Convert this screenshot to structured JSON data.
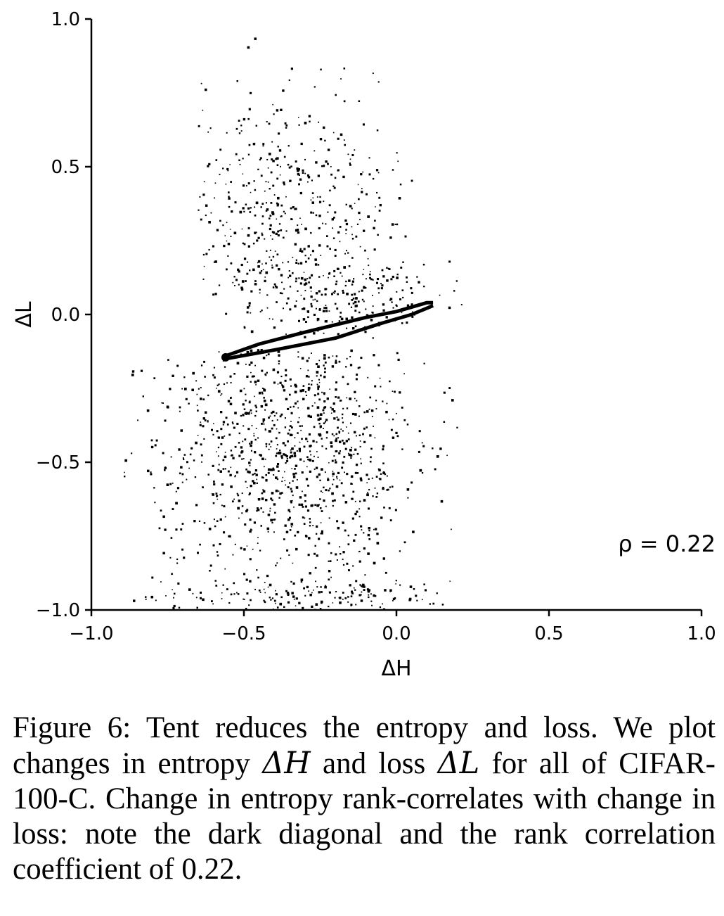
{
  "chart_data": {
    "type": "scatter",
    "xlabel": "ΔH",
    "ylabel": "ΔL",
    "xlim": [
      -1.0,
      1.0
    ],
    "ylim": [
      -1.0,
      1.0
    ],
    "x_ticks": [
      "−1.0",
      "−0.5",
      "0.0",
      "0.5",
      "1.0"
    ],
    "y_ticks": [
      "−1.0",
      "−0.5",
      "0.0",
      "0.5",
      "1.0"
    ],
    "x_tick_values": [
      -1.0,
      -0.5,
      0.0,
      0.5,
      1.0
    ],
    "y_tick_values": [
      -1.0,
      -0.5,
      0.0,
      0.5,
      1.0
    ],
    "annotation": "ρ = 0.22",
    "grid": false,
    "diagonal_band": {
      "upper": [
        [
          -0.56,
          -0.14
        ],
        [
          -0.45,
          -0.1
        ],
        [
          -0.3,
          -0.06
        ],
        [
          -0.1,
          -0.01
        ],
        [
          0.0,
          0.01
        ],
        [
          0.1,
          0.04
        ],
        [
          0.12,
          0.04
        ]
      ],
      "lower": [
        [
          -0.56,
          -0.15
        ],
        [
          -0.4,
          -0.12
        ],
        [
          -0.2,
          -0.08
        ],
        [
          -0.05,
          -0.03
        ],
        [
          0.05,
          0.0
        ],
        [
          0.12,
          0.03
        ]
      ]
    },
    "clusters": [
      {
        "cx": -0.35,
        "cy": 0.35,
        "sx": 0.2,
        "sy": 0.2,
        "xmin": -0.65,
        "xmax": 0.1,
        "ymin": 0.0,
        "ymax": 0.95,
        "n": 460
      },
      {
        "cx": -0.2,
        "cy": 0.05,
        "sx": 0.18,
        "sy": 0.1,
        "xmin": -0.5,
        "xmax": 0.25,
        "ymin": -0.08,
        "ymax": 0.2,
        "n": 220
      },
      {
        "cx": -0.35,
        "cy": -0.45,
        "sx": 0.22,
        "sy": 0.25,
        "xmin": -0.9,
        "xmax": 0.2,
        "ymin": -1.0,
        "ymax": -0.12,
        "n": 1050
      },
      {
        "cx": -0.3,
        "cy": -0.95,
        "sx": 0.25,
        "sy": 0.03,
        "xmin": -0.88,
        "xmax": 0.2,
        "ymin": -1.0,
        "ymax": -0.9,
        "n": 150
      }
    ]
  },
  "caption": {
    "figure_label": "Figure 6:",
    "text_part1": "Tent reduces the entropy and loss. We plot changes in entropy",
    "symbol_h": "ΔH",
    "text_part2": "and loss",
    "symbol_l": "ΔL",
    "text_part3": "for all of CIFAR-100-C. Change in entropy rank-correlates with change in loss: note the dark diagonal and the rank correlation coefficient of 0.22."
  }
}
